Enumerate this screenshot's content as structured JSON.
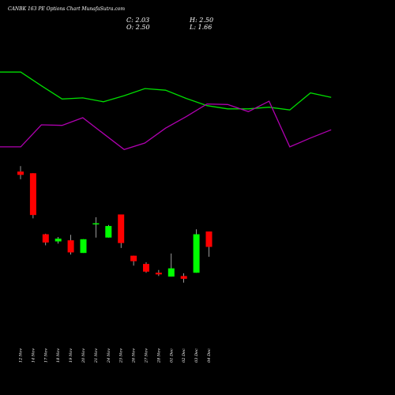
{
  "header": {
    "title": "CANBK 163 PE Options Chart MunafaSutra.com",
    "close": "C: 2.03",
    "open": "O: 2.50",
    "high": "H: 2.50",
    "low": "L: 1.66"
  },
  "colors": {
    "background": "#000000",
    "up": "#00ff00",
    "down": "#ff0000",
    "green_line": "#00dd00",
    "purple_line": "#b000b0",
    "wick": "#ffffff",
    "text": "#ffffff"
  },
  "chart_data": [
    {
      "type": "candlestick",
      "dates": [
        "12 Nov",
        "14 Nov",
        "17 Nov",
        "18 Nov",
        "19 Nov",
        "20 Nov",
        "21 Nov",
        "24 Nov",
        "25 Nov",
        "26 Nov",
        "27 Nov",
        "28 Nov",
        "01 Dec",
        "02 Dec",
        "03 Dec",
        "04 Dec"
      ],
      "candles": [
        {
          "open": 11.9,
          "high": 12.9,
          "low": 10.5,
          "close": 11.3
        },
        {
          "open": 11.6,
          "high": 11.6,
          "low": 3.4,
          "close": 4.0
        },
        {
          "open": 0.5,
          "high": 0.6,
          "low": -1.5,
          "close": -1.0
        },
        {
          "open": -0.8,
          "high": 0.0,
          "low": -1.2,
          "close": -0.3
        },
        {
          "open": -0.6,
          "high": 0.4,
          "low": -3.2,
          "close": -2.8
        },
        {
          "open": -2.9,
          "high": -0.4,
          "low": -2.9,
          "close": -0.4
        },
        {
          "open": 2.3,
          "high": 3.6,
          "low": -0.1,
          "close": 2.5
        },
        {
          "open": -0.1,
          "high": 2.2,
          "low": -0.1,
          "close": 2.0
        },
        {
          "open": 4.1,
          "high": 4.1,
          "low": -2.0,
          "close": -1.1
        },
        {
          "open": -3.4,
          "high": -3.4,
          "low": -5.2,
          "close": -4.4
        },
        {
          "open": -4.9,
          "high": -4.6,
          "low": -6.5,
          "close": -6.3
        },
        {
          "open": -6.5,
          "high": -6.0,
          "low": -7.1,
          "close": -6.8
        },
        {
          "open": -7.2,
          "high": -3.0,
          "low": -7.2,
          "close": -5.7
        },
        {
          "open": -7.1,
          "high": -6.6,
          "low": -8.3,
          "close": -7.6
        },
        {
          "open": -6.5,
          "high": 1.4,
          "low": -6.5,
          "close": 0.5
        },
        {
          "open": 1.0,
          "high": 1.0,
          "low": -3.6,
          "close": -1.8
        }
      ],
      "overlay_lines": [
        {
          "color": "green",
          "values": [
            30.0,
            30.0,
            27.5,
            25.1,
            25.3,
            24.6,
            25.7,
            27.0,
            26.7,
            25.2,
            23.9,
            23.3,
            23.3,
            23.6,
            23.1,
            26.2,
            25.4
          ]
        },
        {
          "color": "purple",
          "values": [
            16.4,
            16.4,
            20.4,
            20.3,
            21.7,
            18.8,
            15.9,
            17.1,
            19.8,
            21.9,
            24.2,
            24.1,
            22.8,
            24.7,
            16.4,
            18.0,
            19.5
          ]
        }
      ]
    }
  ]
}
